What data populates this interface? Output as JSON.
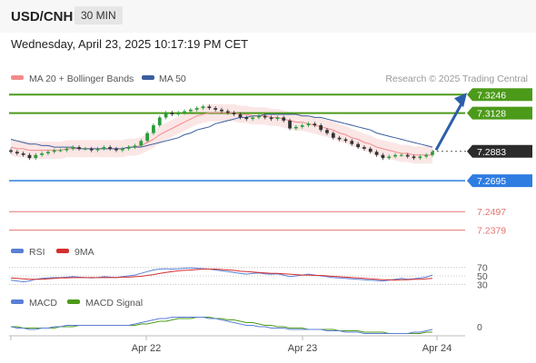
{
  "header": {
    "symbol": "USD/CNH",
    "timeframe": "30 MIN"
  },
  "datetime": "Wednesday, April 23, 2025 10:17:19 PM CET",
  "credit": "Research © 2025 Trading Central",
  "legend": {
    "ma20": "MA 20 + Bollinger Bands",
    "ma50": "MA 50",
    "rsi": "RSI",
    "rsi_ma": "9MA",
    "macd": "MACD",
    "macd_signal": "MACD Signal"
  },
  "colors": {
    "ma20": "#f28b8b",
    "ma50": "#3a5f9e",
    "green_level": "#4c9a1a",
    "blue_level": "#2f7de1",
    "red_level": "#e57373",
    "up": "#2a9d3a",
    "down": "#333333",
    "arrow": "#2b5ea8",
    "rsi": "#5b7fd6",
    "rsi_ma": "#d32f2f",
    "macd_line": "#5b7fd6",
    "signal_line": "#4c9a1a"
  },
  "chart_data": [
    {
      "type": "candlestick",
      "x_labels": [
        "Apr 22",
        "Apr 23",
        "Apr 24"
      ],
      "ylim": [
        7.233,
        7.33
      ],
      "levels": [
        {
          "label": "7.3246",
          "value": 7.3246,
          "kind": "resistance"
        },
        {
          "label": "7.3128",
          "value": 7.3128,
          "kind": "resistance"
        },
        {
          "label": "7.2883",
          "value": 7.2883,
          "kind": "last"
        },
        {
          "label": "7.2695",
          "value": 7.2695,
          "kind": "pivot"
        },
        {
          "label": "7.2497",
          "value": 7.2497,
          "kind": "support"
        },
        {
          "label": "7.2379",
          "value": 7.2379,
          "kind": "support"
        }
      ],
      "close_series": [
        7.288,
        7.287,
        7.286,
        7.284,
        7.286,
        7.287,
        7.288,
        7.289,
        7.289,
        7.29,
        7.291,
        7.29,
        7.29,
        7.289,
        7.29,
        7.291,
        7.29,
        7.289,
        7.29,
        7.291,
        7.292,
        7.295,
        7.3,
        7.305,
        7.31,
        7.313,
        7.312,
        7.313,
        7.314,
        7.315,
        7.316,
        7.317,
        7.316,
        7.315,
        7.314,
        7.313,
        7.312,
        7.31,
        7.309,
        7.31,
        7.311,
        7.31,
        7.309,
        7.31,
        7.308,
        7.303,
        7.304,
        7.305,
        7.306,
        7.305,
        7.302,
        7.3,
        7.297,
        7.296,
        7.295,
        7.293,
        7.291,
        7.29,
        7.288,
        7.286,
        7.284,
        7.285,
        7.286,
        7.286,
        7.285,
        7.284,
        7.285,
        7.286,
        7.288
      ],
      "ma20_series": [
        7.291,
        7.29,
        7.29,
        7.289,
        7.289,
        7.289,
        7.289,
        7.289,
        7.289,
        7.29,
        7.29,
        7.29,
        7.29,
        7.29,
        7.29,
        7.29,
        7.29,
        7.29,
        7.29,
        7.291,
        7.291,
        7.292,
        7.294,
        7.296,
        7.299,
        7.301,
        7.303,
        7.305,
        7.307,
        7.309,
        7.311,
        7.312,
        7.313,
        7.313,
        7.313,
        7.313,
        7.313,
        7.312,
        7.312,
        7.311,
        7.311,
        7.311,
        7.31,
        7.31,
        7.309,
        7.308,
        7.307,
        7.307,
        7.306,
        7.305,
        7.304,
        7.303,
        7.302,
        7.3,
        7.299,
        7.297,
        7.296,
        7.294,
        7.293,
        7.291,
        7.29,
        7.289,
        7.288,
        7.287,
        7.287,
        7.286,
        7.286,
        7.286,
        7.286
      ],
      "ma50_series": [
        7.296,
        7.295,
        7.294,
        7.293,
        7.293,
        7.292,
        7.292,
        7.291,
        7.291,
        7.291,
        7.291,
        7.29,
        7.29,
        7.29,
        7.29,
        7.29,
        7.29,
        7.29,
        7.29,
        7.291,
        7.291,
        7.291,
        7.292,
        7.293,
        7.294,
        7.295,
        7.296,
        7.297,
        7.299,
        7.3,
        7.302,
        7.303,
        7.304,
        7.306,
        7.307,
        7.308,
        7.309,
        7.31,
        7.31,
        7.311,
        7.311,
        7.312,
        7.312,
        7.312,
        7.312,
        7.312,
        7.312,
        7.311,
        7.311,
        7.31,
        7.31,
        7.309,
        7.308,
        7.307,
        7.306,
        7.305,
        7.304,
        7.303,
        7.302,
        7.3,
        7.299,
        7.298,
        7.297,
        7.296,
        7.295,
        7.294,
        7.293,
        7.292,
        7.291
      ]
    },
    {
      "type": "line",
      "name": "RSI",
      "levels": [
        70,
        50,
        30
      ],
      "ylim": [
        20,
        80
      ],
      "rsi_series": [
        40,
        38,
        36,
        38,
        42,
        44,
        45,
        46,
        46,
        47,
        48,
        47,
        46,
        45,
        46,
        48,
        47,
        46,
        48,
        50,
        52,
        56,
        60,
        64,
        66,
        67,
        66,
        67,
        68,
        69,
        68,
        67,
        66,
        64,
        62,
        60,
        58,
        56,
        54,
        56,
        57,
        55,
        54,
        55,
        52,
        48,
        50,
        52,
        54,
        52,
        50,
        48,
        46,
        45,
        44,
        43,
        42,
        41,
        40,
        39,
        38,
        40,
        42,
        44,
        42,
        43,
        45,
        47,
        52
      ],
      "ma9_series": [
        45,
        44,
        43,
        42,
        42,
        42,
        43,
        44,
        45,
        45,
        46,
        46,
        46,
        46,
        46,
        46,
        46,
        46,
        47,
        47,
        48,
        49,
        51,
        53,
        56,
        58,
        60,
        62,
        63,
        64,
        65,
        66,
        66,
        66,
        65,
        64,
        63,
        61,
        60,
        59,
        58,
        57,
        56,
        56,
        55,
        54,
        53,
        52,
        52,
        51,
        51,
        50,
        49,
        48,
        47,
        46,
        45,
        44,
        43,
        42,
        41,
        41,
        40,
        41,
        41,
        42,
        42,
        43,
        44
      ]
    },
    {
      "type": "line",
      "name": "MACD",
      "levels": [
        0
      ],
      "ylim": [
        -0.008,
        0.012
      ],
      "macd_series": [
        0.0,
        -0.001,
        -0.001,
        -0.002,
        -0.002,
        -0.001,
        -0.001,
        0.0,
        0.0,
        0.001,
        0.001,
        0.001,
        0.001,
        0.001,
        0.001,
        0.001,
        0.001,
        0.001,
        0.001,
        0.001,
        0.002,
        0.003,
        0.004,
        0.005,
        0.006,
        0.006,
        0.007,
        0.007,
        0.007,
        0.007,
        0.007,
        0.007,
        0.006,
        0.006,
        0.005,
        0.004,
        0.003,
        0.002,
        0.001,
        0.001,
        0.0,
        0.0,
        -0.001,
        -0.001,
        -0.001,
        -0.002,
        -0.002,
        -0.002,
        -0.002,
        -0.002,
        -0.002,
        -0.003,
        -0.003,
        -0.003,
        -0.004,
        -0.004,
        -0.004,
        -0.005,
        -0.005,
        -0.005,
        -0.005,
        -0.005,
        -0.005,
        -0.005,
        -0.005,
        -0.004,
        -0.004,
        -0.003,
        -0.002
      ],
      "signal_series": [
        0.0,
        0.0,
        -0.001,
        -0.001,
        -0.001,
        -0.001,
        -0.001,
        -0.001,
        0.0,
        0.0,
        0.0,
        0.001,
        0.001,
        0.001,
        0.001,
        0.001,
        0.001,
        0.001,
        0.001,
        0.001,
        0.001,
        0.002,
        0.002,
        0.003,
        0.004,
        0.004,
        0.005,
        0.006,
        0.006,
        0.006,
        0.007,
        0.007,
        0.007,
        0.006,
        0.006,
        0.005,
        0.005,
        0.004,
        0.003,
        0.003,
        0.002,
        0.001,
        0.001,
        0.0,
        0.0,
        -0.001,
        -0.001,
        -0.001,
        -0.002,
        -0.002,
        -0.002,
        -0.002,
        -0.002,
        -0.003,
        -0.003,
        -0.003,
        -0.003,
        -0.004,
        -0.004,
        -0.004,
        -0.004,
        -0.005,
        -0.005,
        -0.005,
        -0.005,
        -0.005,
        -0.005,
        -0.004,
        -0.004
      ]
    }
  ]
}
